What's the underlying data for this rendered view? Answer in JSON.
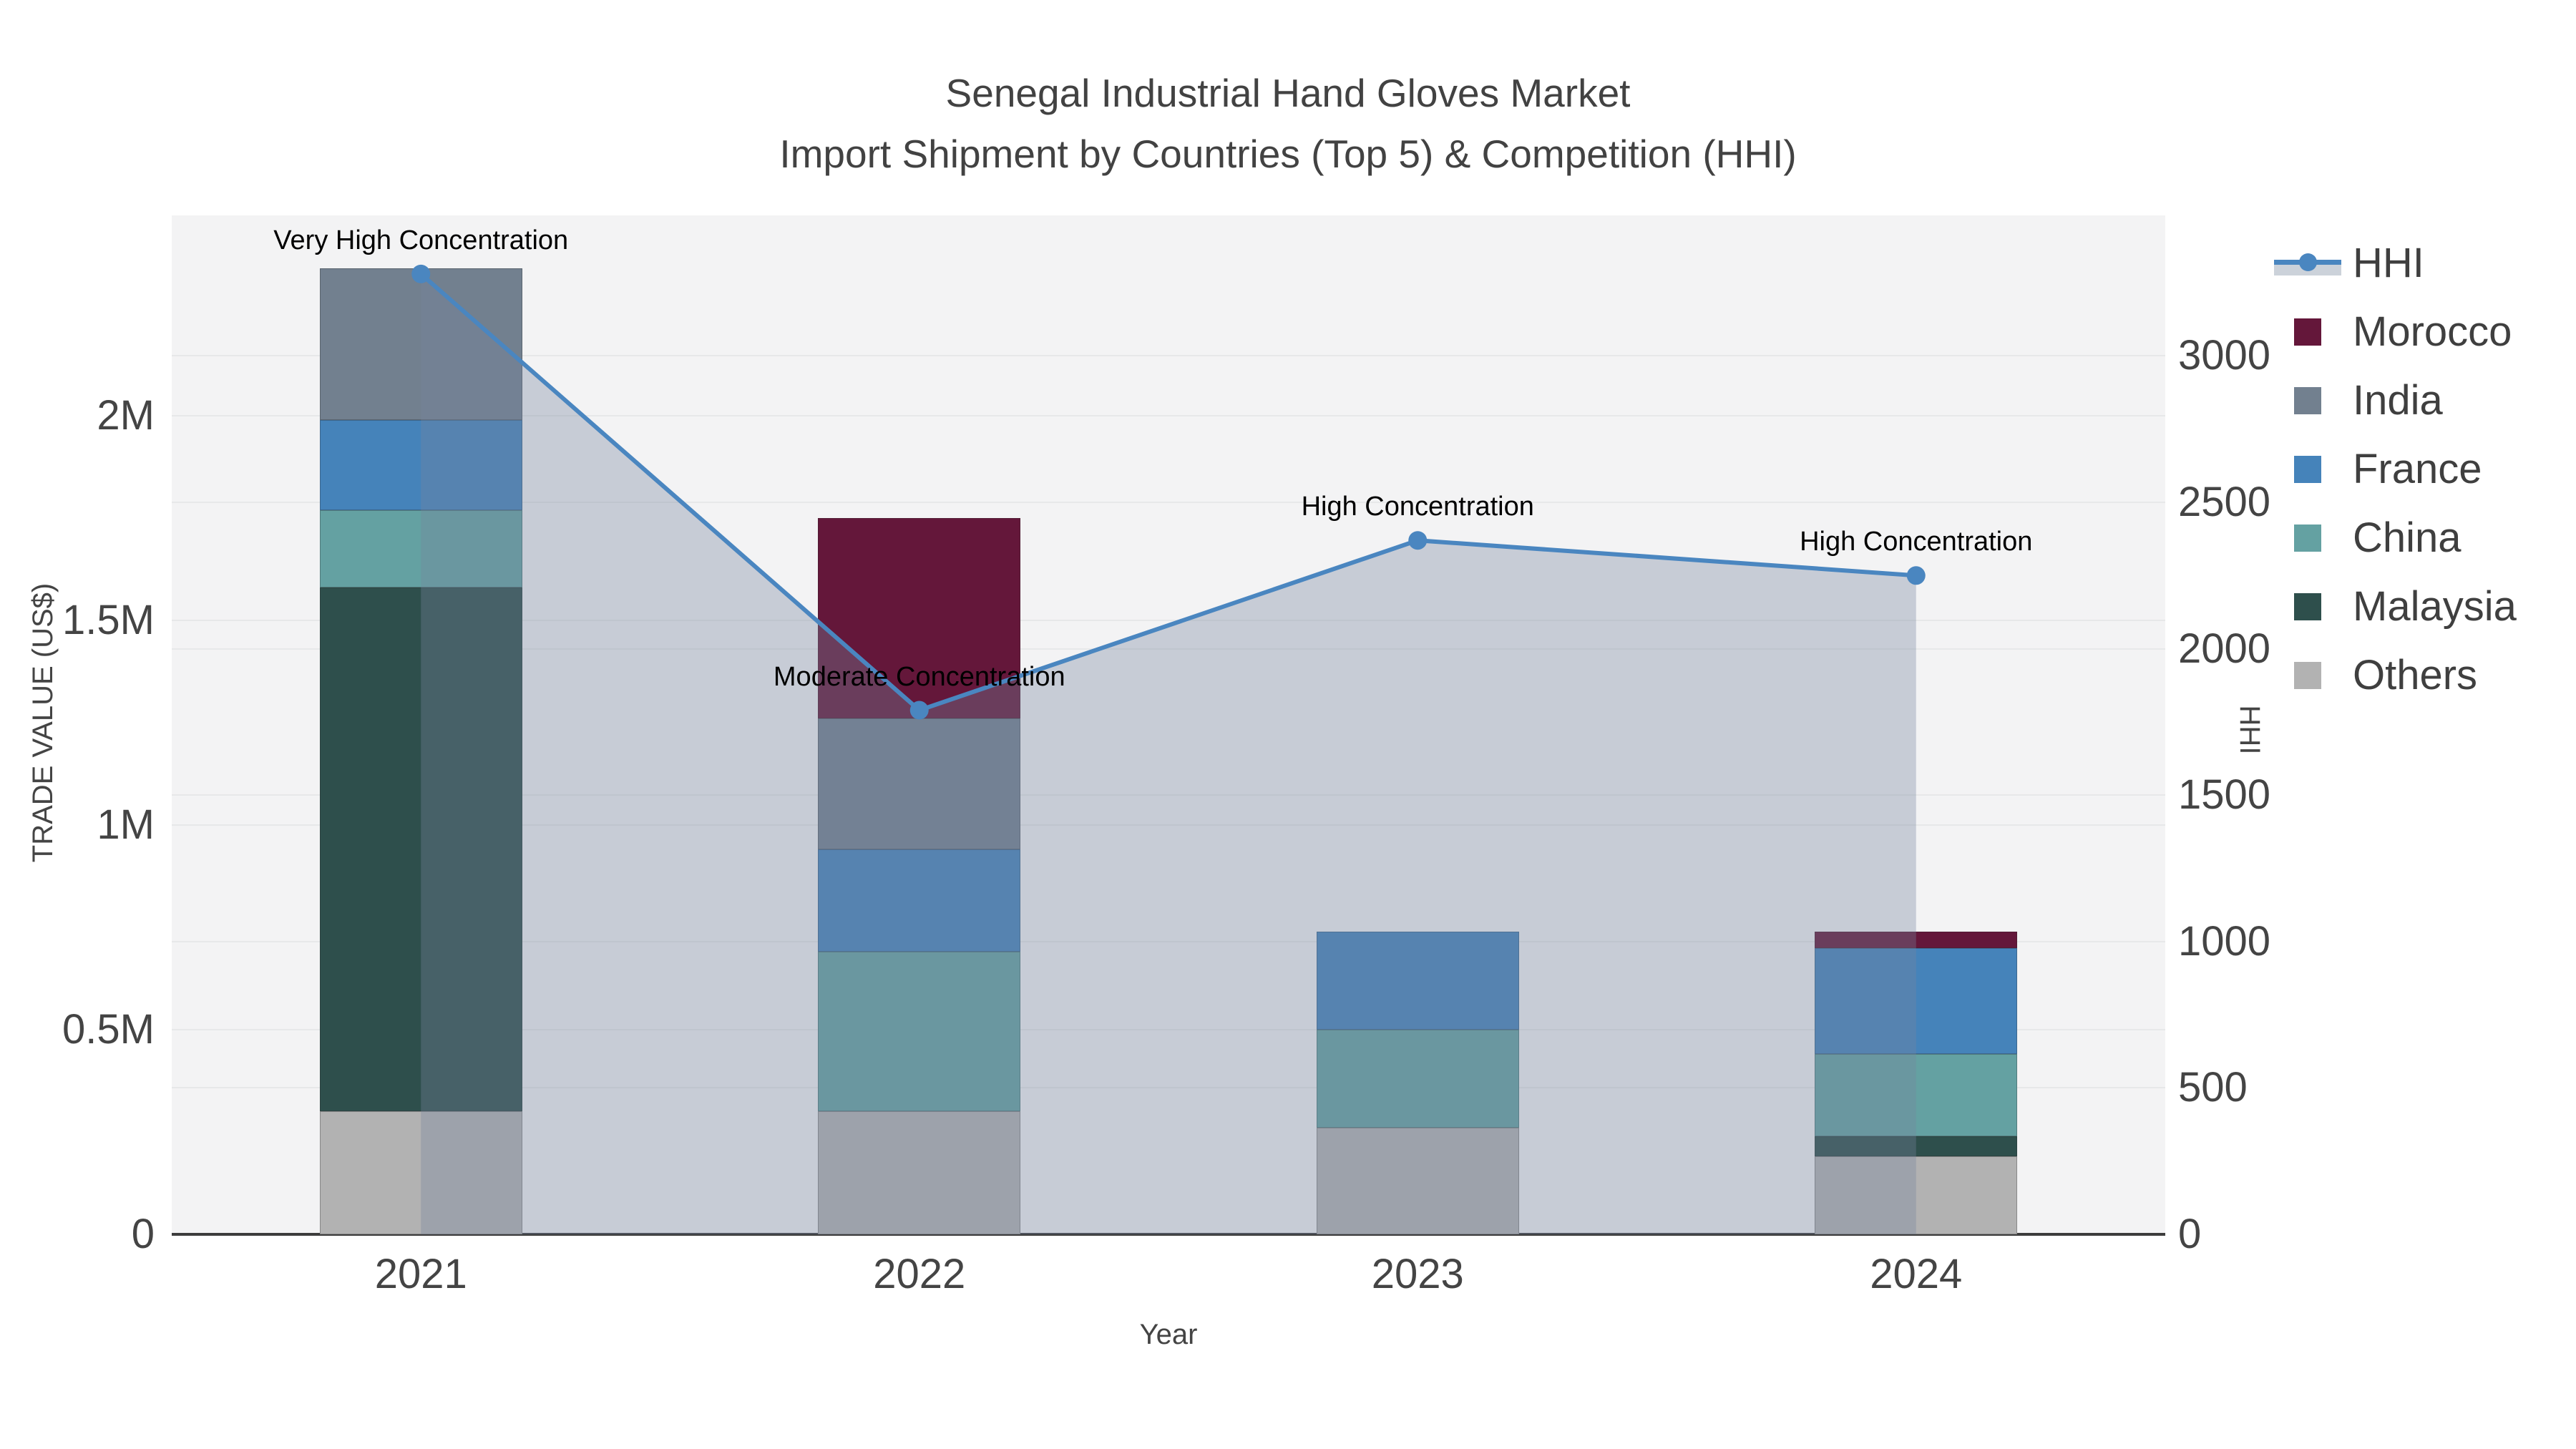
{
  "title": {
    "line1": "Senegal Industrial Hand Gloves Market",
    "line2": "Import Shipment by Countries (Top 5) & Competition (HHI)"
  },
  "chart_data": {
    "type": "bar",
    "subtype": "stacked-bars-with-dual-axis-line",
    "categories": [
      "2021",
      "2022",
      "2023",
      "2024"
    ],
    "series": [
      {
        "name": "Others",
        "color": "#b2b2b2",
        "values": [
          0.3,
          0.3,
          0.26,
          0.19
        ]
      },
      {
        "name": "Malaysia",
        "color": "#2e4f4c",
        "values": [
          1.28,
          0,
          0,
          0.05
        ]
      },
      {
        "name": "China",
        "color": "#64a1a2",
        "values": [
          0.19,
          0.39,
          0.24,
          0.2
        ]
      },
      {
        "name": "France",
        "color": "#4583ba",
        "values": [
          0.22,
          0.25,
          0.24,
          0.26
        ]
      },
      {
        "name": "India",
        "color": "#72808f",
        "values": [
          0.37,
          0.32,
          0,
          0
        ]
      },
      {
        "name": "Morocco",
        "color": "#64173a",
        "values": [
          0,
          0.49,
          0,
          0.04
        ]
      }
    ],
    "line_series": {
      "name": "HHI",
      "color": "#4a86c0",
      "area_fill": "rgba(118,133,158,0.35)",
      "values": [
        3280,
        1790,
        2370,
        2250
      ]
    },
    "annotations": [
      "Very High Concentration",
      "Moderate Concentration",
      "High Concentration",
      "High Concentration"
    ],
    "left_axis": {
      "title": "TRADE VALUE (US$)",
      "tick_labels": [
        "0",
        "0.5M",
        "1M",
        "1.5M",
        "2M"
      ],
      "tick_values": [
        0,
        0.5,
        1,
        1.5,
        2
      ],
      "max": 2.49,
      "unit": "US$ millions"
    },
    "right_axis": {
      "title": "HHI",
      "tick_values": [
        0,
        500,
        1000,
        1500,
        2000,
        2500,
        3000
      ],
      "max": 3480
    },
    "x_axis": {
      "title": "Year"
    },
    "legend_order": [
      "HHI",
      "Morocco",
      "India",
      "France",
      "China",
      "Malaysia",
      "Others"
    ],
    "grid": true,
    "legend_position": "right"
  }
}
